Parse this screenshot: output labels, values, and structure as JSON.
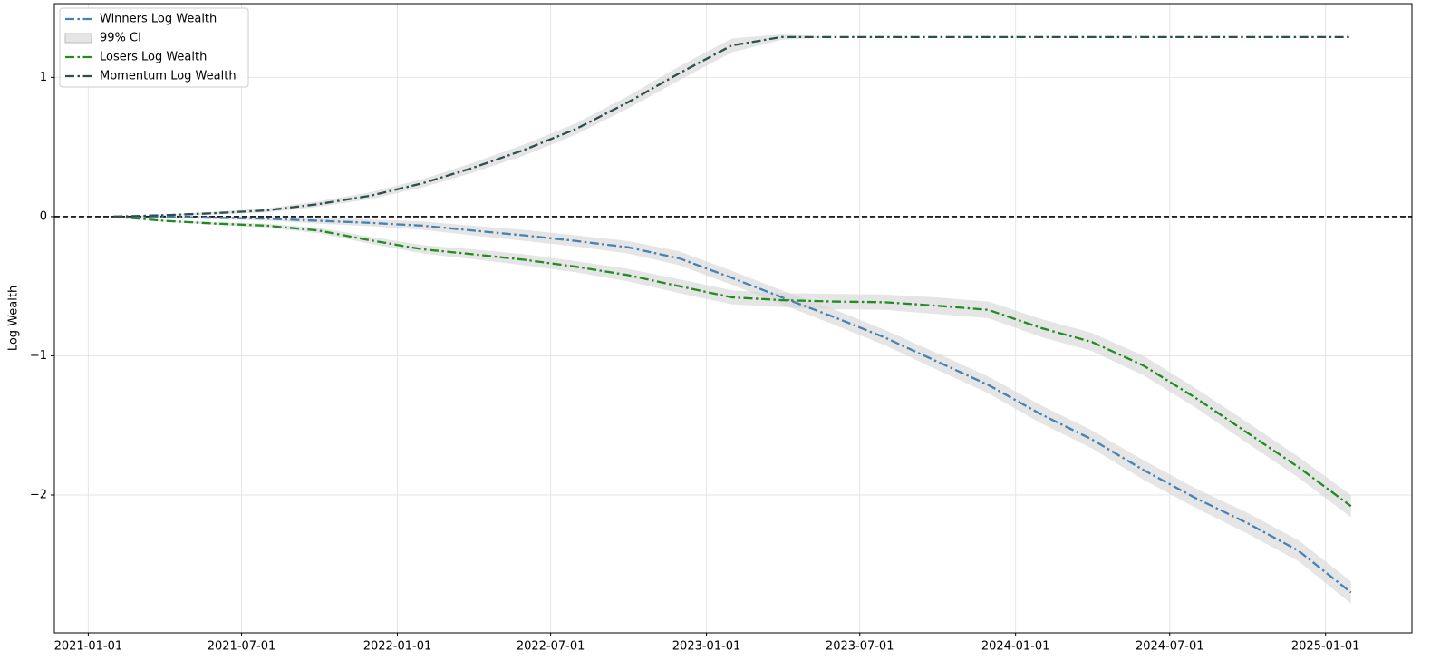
{
  "chart_data": {
    "type": "line",
    "y_label": "Log Wealth",
    "x": [
      "2021-01-31",
      "2021-03-31",
      "2021-05-31",
      "2021-07-31",
      "2021-09-30",
      "2021-11-30",
      "2022-01-31",
      "2022-03-31",
      "2022-05-31",
      "2022-07-31",
      "2022-09-30",
      "2022-11-30",
      "2023-01-31",
      "2023-03-31",
      "2023-05-31",
      "2023-07-31",
      "2023-09-30",
      "2023-11-30",
      "2024-01-31",
      "2024-03-31",
      "2024-05-31",
      "2024-07-31",
      "2024-09-30",
      "2024-11-30",
      "2025-01-31"
    ],
    "series": [
      {
        "name": "Winners Log Wealth",
        "color": "#4682b4",
        "values": [
          0,
          -0.003,
          -0.008,
          -0.015,
          -0.03,
          -0.045,
          -0.065,
          -0.1,
          -0.135,
          -0.175,
          -0.22,
          -0.3,
          -0.44,
          -0.58,
          -0.72,
          -0.87,
          -1.04,
          -1.21,
          -1.42,
          -1.6,
          -1.82,
          -2.02,
          -2.2,
          -2.4,
          -2.7
        ],
        "ci": [
          0,
          0.005,
          0.01,
          0.015,
          0.02,
          0.025,
          0.03,
          0.035,
          0.04,
          0.04,
          0.045,
          0.05,
          0.05,
          0.05,
          0.055,
          0.055,
          0.06,
          0.06,
          0.065,
          0.065,
          0.07,
          0.07,
          0.075,
          0.075,
          0.08
        ]
      },
      {
        "name": "Losers Log Wealth",
        "color": "#228b22",
        "values": [
          0,
          -0.03,
          -0.05,
          -0.065,
          -0.1,
          -0.17,
          -0.235,
          -0.27,
          -0.31,
          -0.36,
          -0.42,
          -0.5,
          -0.58,
          -0.6,
          -0.61,
          -0.615,
          -0.64,
          -0.67,
          -0.8,
          -0.9,
          -1.07,
          -1.3,
          -1.55,
          -1.8,
          -2.08
        ],
        "ci": [
          0,
          0.005,
          0.01,
          0.015,
          0.02,
          0.025,
          0.03,
          0.035,
          0.04,
          0.04,
          0.045,
          0.05,
          0.05,
          0.05,
          0.055,
          0.055,
          0.06,
          0.06,
          0.065,
          0.065,
          0.07,
          0.07,
          0.075,
          0.075,
          0.08
        ]
      },
      {
        "name": "Momentum Log Wealth",
        "color": "#2f4f4f",
        "values": [
          0,
          0.01,
          0.025,
          0.045,
          0.09,
          0.15,
          0.24,
          0.35,
          0.48,
          0.63,
          0.82,
          1.03,
          1.23,
          1.29,
          1.29,
          1.29,
          1.29,
          1.29,
          1.29,
          1.29,
          1.29,
          1.29,
          1.29,
          1.29,
          1.29
        ],
        "ci": [
          0,
          0.005,
          0.01,
          0.015,
          0.02,
          0.025,
          0.03,
          0.035,
          0.04,
          0.04,
          0.045,
          0.05,
          0.05,
          0.02,
          0,
          0,
          0,
          0,
          0,
          0,
          0,
          0,
          0,
          0,
          0
        ]
      }
    ],
    "ci_label": "99% CI",
    "ci_color": "#d3d3d3",
    "reference_line": 0,
    "xlim": [
      "2020-11-22",
      "2025-04-13"
    ],
    "xticks": [
      "2021-01-01",
      "2021-07-01",
      "2022-01-01",
      "2022-07-01",
      "2023-01-01",
      "2023-07-01",
      "2024-01-01",
      "2024-07-01",
      "2025-01-01"
    ],
    "ylim": [
      -2.99,
      1.53
    ],
    "yticks": [
      {
        "value": -2,
        "label": "−2"
      },
      {
        "value": -1,
        "label": "−1"
      },
      0,
      1
    ],
    "grid": true,
    "legend": "upper left"
  }
}
